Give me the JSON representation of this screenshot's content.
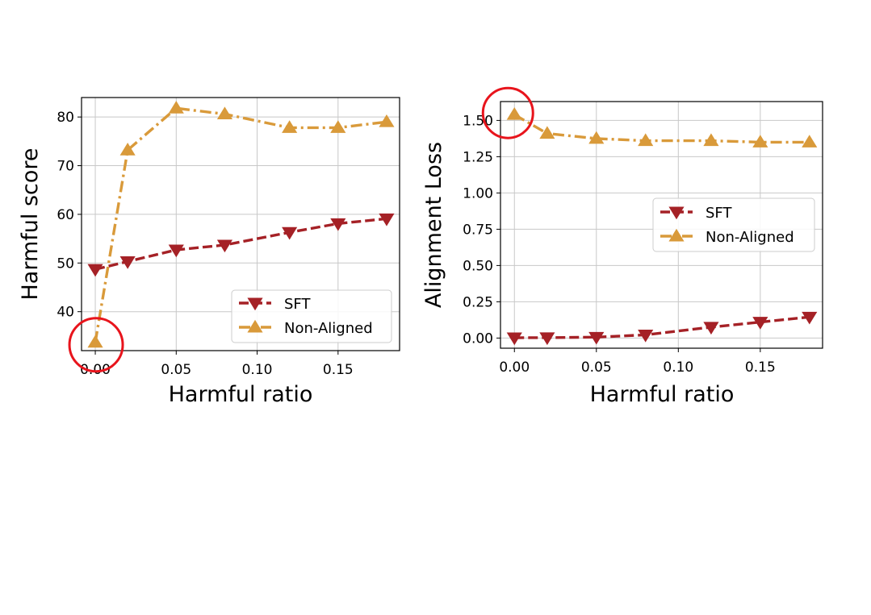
{
  "colors": {
    "sft": "#a52126",
    "non_aligned": "#d99a3a",
    "grid": "#c8c8c8",
    "highlight": "#e8141c"
  },
  "chart_data": [
    {
      "type": "line",
      "xlabel": "Harmful ratio",
      "ylabel": "Harmful score",
      "xlim": [
        -0.0085,
        0.188
      ],
      "ylim": [
        32,
        84
      ],
      "xticks": [
        0.0,
        0.05,
        0.1,
        0.15
      ],
      "xtick_labels": [
        "0.00",
        "0.05",
        "0.10",
        "0.15"
      ],
      "yticks": [
        40,
        50,
        60,
        70,
        80
      ],
      "ytick_labels": [
        "40",
        "50",
        "60",
        "70",
        "80"
      ],
      "x": [
        0.0,
        0.02,
        0.05,
        0.08,
        0.12,
        0.15,
        0.18
      ],
      "series": [
        {
          "name": "SFT",
          "values": [
            48.7,
            50.3,
            52.7,
            53.7,
            56.3,
            58.1,
            59.1
          ],
          "marker": "triangle-down",
          "linestyle": "dashed"
        },
        {
          "name": "Non-Aligned",
          "values": [
            33.7,
            73.2,
            81.8,
            80.6,
            77.8,
            77.8,
            79.0
          ],
          "marker": "triangle-up",
          "linestyle": "dashdot"
        }
      ],
      "legend": "lower-right",
      "highlight_point": {
        "series": "Non-Aligned",
        "x": 0.0
      }
    },
    {
      "type": "line",
      "xlabel": "Harmful ratio",
      "ylabel": "Alignment Loss",
      "xlim": [
        -0.0085,
        0.188
      ],
      "ylim": [
        -0.07,
        1.63
      ],
      "xticks": [
        0.0,
        0.05,
        0.1,
        0.15
      ],
      "xtick_labels": [
        "0.00",
        "0.05",
        "0.10",
        "0.15"
      ],
      "yticks": [
        0.0,
        0.25,
        0.5,
        0.75,
        1.0,
        1.25,
        1.5
      ],
      "ytick_labels": [
        "0.00",
        "0.25",
        "0.50",
        "0.75",
        "1.00",
        "1.25",
        "1.50"
      ],
      "x": [
        0.0,
        0.02,
        0.05,
        0.08,
        0.12,
        0.15,
        0.18
      ],
      "series": [
        {
          "name": "SFT",
          "values": [
            0.002,
            0.003,
            0.006,
            0.022,
            0.075,
            0.11,
            0.145
          ],
          "marker": "triangle-down",
          "linestyle": "dashed"
        },
        {
          "name": "Non-Aligned",
          "values": [
            1.54,
            1.41,
            1.375,
            1.36,
            1.36,
            1.35,
            1.35
          ],
          "marker": "triangle-up",
          "linestyle": "dashdot"
        }
      ],
      "legend": "center-right",
      "highlight_point": {
        "series": "Non-Aligned",
        "x": 0.0
      }
    }
  ]
}
